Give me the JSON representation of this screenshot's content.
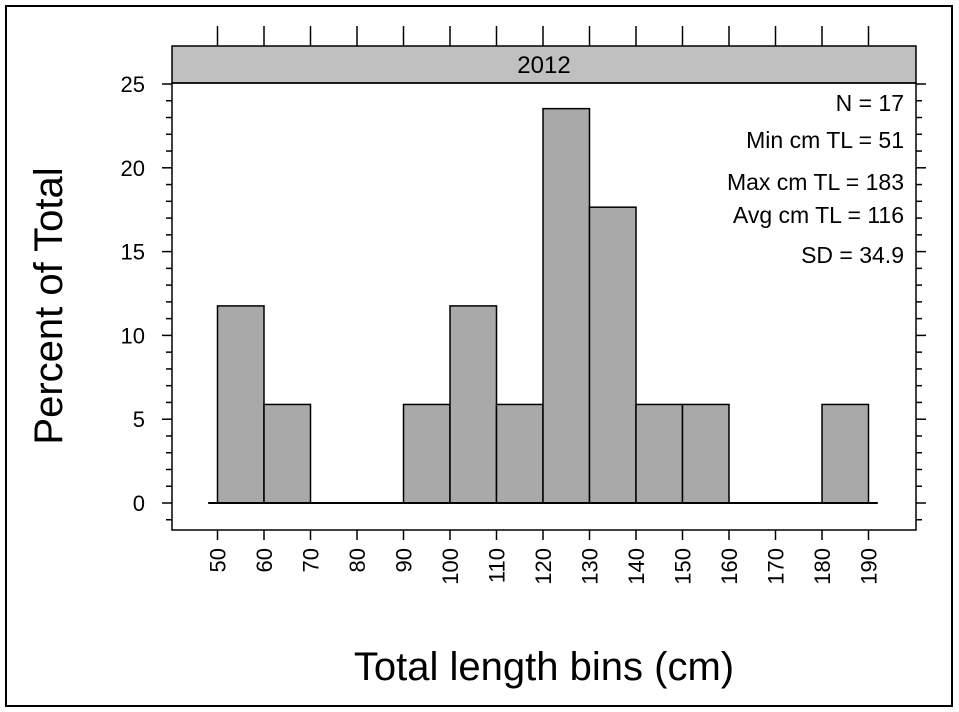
{
  "chart_data": {
    "type": "bar",
    "panel_title": "2012",
    "xlabel": "Total length bins (cm)",
    "ylabel": "Percent of Total",
    "ylim": [
      0,
      25
    ],
    "xlim": [
      40,
      200
    ],
    "bin_width": 10,
    "x_ticks": [
      "50",
      "60",
      "70",
      "80",
      "90",
      "100",
      "110",
      "120",
      "130",
      "140",
      "150",
      "160",
      "170",
      "180",
      "190"
    ],
    "y_ticks": [
      "0",
      "5",
      "10",
      "15",
      "20",
      "25"
    ],
    "bins": [
      {
        "start": 50,
        "end": 60,
        "value": 11.76
      },
      {
        "start": 60,
        "end": 70,
        "value": 5.88
      },
      {
        "start": 70,
        "end": 80,
        "value": 0
      },
      {
        "start": 80,
        "end": 90,
        "value": 0
      },
      {
        "start": 90,
        "end": 100,
        "value": 5.88
      },
      {
        "start": 100,
        "end": 110,
        "value": 11.76
      },
      {
        "start": 110,
        "end": 120,
        "value": 5.88
      },
      {
        "start": 120,
        "end": 130,
        "value": 23.53
      },
      {
        "start": 130,
        "end": 140,
        "value": 17.65
      },
      {
        "start": 140,
        "end": 150,
        "value": 5.88
      },
      {
        "start": 150,
        "end": 160,
        "value": 5.88
      },
      {
        "start": 160,
        "end": 170,
        "value": 0
      },
      {
        "start": 170,
        "end": 180,
        "value": 0
      },
      {
        "start": 180,
        "end": 190,
        "value": 5.88
      }
    ],
    "stats": [
      "N = 17",
      "Min cm TL = 51",
      "Max cm TL = 183",
      "Avg cm TL = 116",
      "SD = 34.9"
    ],
    "colors": {
      "bar_fill": "#a9a9a9",
      "strip_fill": "#c0c0c0",
      "border": "#000000",
      "background": "#ffffff"
    },
    "grid": false
  }
}
